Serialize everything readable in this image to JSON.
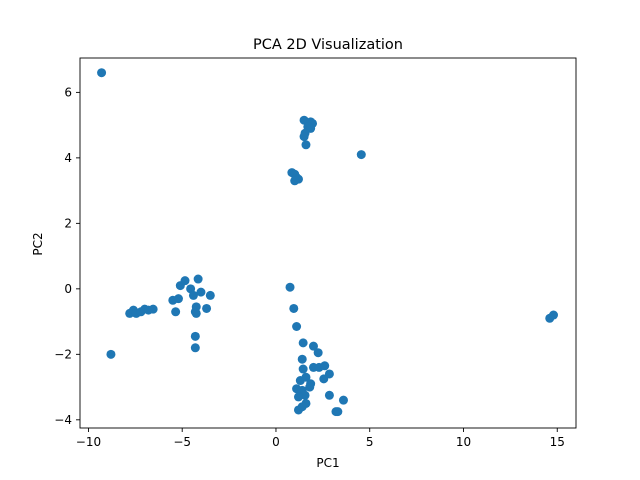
{
  "chart_data": {
    "type": "scatter",
    "title": "PCA 2D Visualization",
    "xlabel": "PC1",
    "ylabel": "PC2",
    "xlim": [
      -10.45,
      16.0
    ],
    "ylim": [
      -4.25,
      7.05
    ],
    "xticks": [
      -10,
      -5,
      0,
      5,
      10,
      15
    ],
    "yticks": [
      -4,
      -2,
      0,
      2,
      4,
      6
    ],
    "grid": false,
    "marker_color": "#1f77b4",
    "points": [
      [
        -9.3,
        6.6
      ],
      [
        -8.8,
        -2.0
      ],
      [
        -7.8,
        -0.75
      ],
      [
        -7.6,
        -0.65
      ],
      [
        -7.45,
        -0.75
      ],
      [
        -7.2,
        -0.7
      ],
      [
        -7.0,
        -0.62
      ],
      [
        -6.8,
        -0.65
      ],
      [
        -6.55,
        -0.62
      ],
      [
        -5.5,
        -0.35
      ],
      [
        -5.35,
        -0.7
      ],
      [
        -5.2,
        -0.3
      ],
      [
        -5.1,
        0.1
      ],
      [
        -4.85,
        0.25
      ],
      [
        -4.55,
        0.0
      ],
      [
        -4.4,
        -0.2
      ],
      [
        -4.3,
        -0.7
      ],
      [
        -4.25,
        -0.55
      ],
      [
        -4.25,
        -0.75
      ],
      [
        -4.15,
        0.3
      ],
      [
        -4.0,
        -0.1
      ],
      [
        -3.7,
        -0.6
      ],
      [
        -3.5,
        -0.2
      ],
      [
        -4.3,
        -1.45
      ],
      [
        -4.3,
        -1.8
      ],
      [
        0.75,
        0.05
      ],
      [
        0.95,
        -0.6
      ],
      [
        1.1,
        -1.15
      ],
      [
        1.45,
        -1.65
      ],
      [
        1.4,
        -2.15
      ],
      [
        1.45,
        -2.45
      ],
      [
        1.3,
        -2.8
      ],
      [
        1.6,
        -2.7
      ],
      [
        1.85,
        -2.9
      ],
      [
        2.0,
        -1.75
      ],
      [
        2.25,
        -1.95
      ],
      [
        2.0,
        -2.4
      ],
      [
        2.3,
        -2.4
      ],
      [
        2.6,
        -2.35
      ],
      [
        2.85,
        -2.6
      ],
      [
        2.55,
        -2.75
      ],
      [
        1.8,
        -3.0
      ],
      [
        1.1,
        -3.05
      ],
      [
        1.4,
        -3.1
      ],
      [
        1.55,
        -3.25
      ],
      [
        1.2,
        -3.3
      ],
      [
        1.6,
        -3.5
      ],
      [
        1.2,
        -3.7
      ],
      [
        1.4,
        -3.6
      ],
      [
        2.85,
        -3.25
      ],
      [
        3.6,
        -3.4
      ],
      [
        3.2,
        -3.75
      ],
      [
        3.3,
        -3.75
      ],
      [
        0.85,
        3.55
      ],
      [
        1.0,
        3.5
      ],
      [
        1.1,
        3.4
      ],
      [
        1.2,
        3.35
      ],
      [
        1.0,
        3.3
      ],
      [
        1.5,
        5.15
      ],
      [
        1.85,
        5.1
      ],
      [
        1.95,
        5.05
      ],
      [
        1.7,
        4.95
      ],
      [
        1.85,
        4.9
      ],
      [
        1.55,
        4.75
      ],
      [
        1.5,
        4.65
      ],
      [
        1.6,
        4.4
      ],
      [
        4.55,
        4.1
      ],
      [
        14.6,
        -0.9
      ],
      [
        14.8,
        -0.8
      ]
    ]
  }
}
